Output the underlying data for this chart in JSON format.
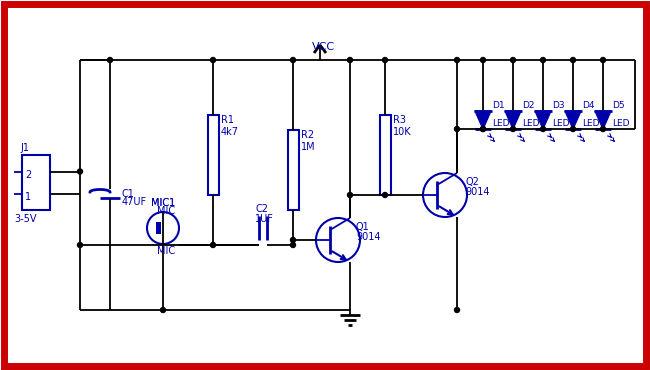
{
  "bg": "#f0f0f0",
  "white": "#ffffff",
  "border_color": "#cc0000",
  "wc": "#000000",
  "blue": "#0000aa",
  "vcc_label": "VCC",
  "j1_pins": [
    "2",
    "1"
  ],
  "j1_label": "J1",
  "j1_bot_label": "3-5V",
  "c1_label": "C1",
  "c1_val": "47UF",
  "mic_label": "MIC1",
  "mic_val": "MIC",
  "r1_label": "R1",
  "r1_val": "4k7",
  "c2_label": "C2",
  "c2_val": "1UF",
  "r2_label": "R2",
  "r2_val": "1M",
  "q1_label": "Q1",
  "q1_val": "9014",
  "r3_label": "R3",
  "r3_val": "10K",
  "q2_label": "Q2",
  "q2_val": "9014",
  "led_labels": [
    "D1",
    "D2",
    "D3",
    "D4",
    "D5"
  ],
  "led_val": "LED"
}
